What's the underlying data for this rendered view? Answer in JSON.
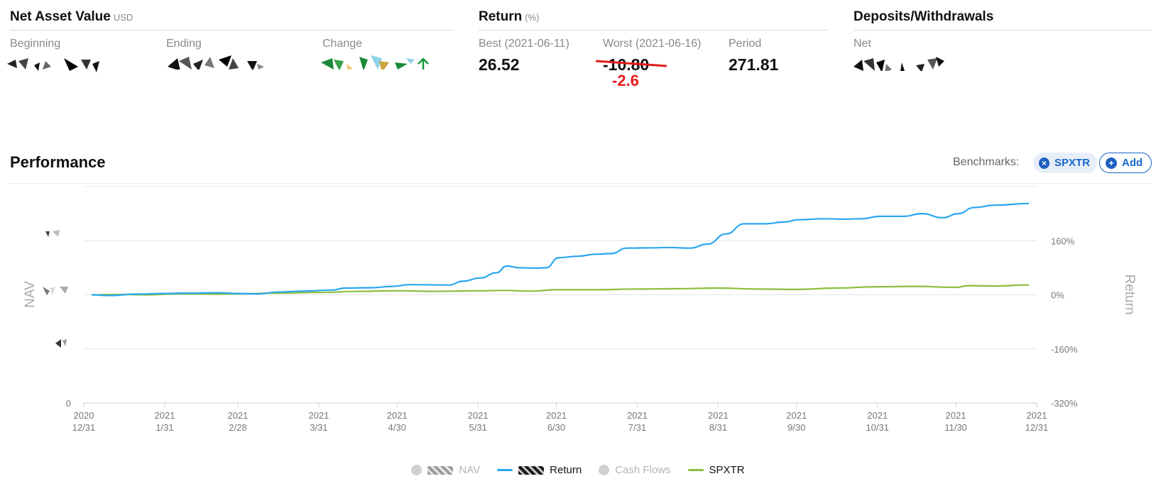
{
  "nav": {
    "title": "Net Asset Value",
    "unit": "USD",
    "beginning_label": "Beginning",
    "ending_label": "Ending",
    "change_label": "Change"
  },
  "return": {
    "title": "Return",
    "unit": "(%)",
    "best_label": "Best (2021-06-11)",
    "best_value": "26.52",
    "worst_label": "Worst (2021-06-16)",
    "worst_value": "-10.80",
    "worst_correction": "-2.6",
    "period_label": "Period",
    "period_value": "271.81"
  },
  "deposits": {
    "title": "Deposits/Withdrawals",
    "net_label": "Net"
  },
  "performance": {
    "title": "Performance",
    "benchmarks_label": "Benchmarks:",
    "benchmark_chip": "SPXTR",
    "add_label": "Add"
  },
  "icons": {
    "change_arrow": "arrow-up-icon",
    "chip_remove": "close-circle-icon",
    "chip_add": "plus-circle-icon"
  },
  "colors": {
    "return_line": "#2aa7f0",
    "spxtr_line": "#8abf3c",
    "accent": "#1667c7",
    "alert": "#e31b1b",
    "positive": "#169b3c"
  },
  "chart_data": {
    "type": "line",
    "title": "",
    "left_axis_title": "NAV",
    "right_axis_title": "Return",
    "left_ticks": [
      "0"
    ],
    "right_ticks": [
      "160%",
      "0%",
      "-160%",
      "-320%"
    ],
    "y_right_range": [
      -320,
      320
    ],
    "x_range": [
      "2020-12-31",
      "2021-12-31"
    ],
    "x_ticks": [
      {
        "top": "2020",
        "bottom": "12/31",
        "date": "2020-12-31"
      },
      {
        "top": "2021",
        "bottom": "1/31",
        "date": "2021-01-31"
      },
      {
        "top": "2021",
        "bottom": "2/28",
        "date": "2021-02-28"
      },
      {
        "top": "2021",
        "bottom": "3/31",
        "date": "2021-03-31"
      },
      {
        "top": "2021",
        "bottom": "4/30",
        "date": "2021-04-30"
      },
      {
        "top": "2021",
        "bottom": "5/31",
        "date": "2021-05-31"
      },
      {
        "top": "2021",
        "bottom": "6/30",
        "date": "2021-06-30"
      },
      {
        "top": "2021",
        "bottom": "7/31",
        "date": "2021-07-31"
      },
      {
        "top": "2021",
        "bottom": "8/31",
        "date": "2021-08-31"
      },
      {
        "top": "2021",
        "bottom": "9/30",
        "date": "2021-09-30"
      },
      {
        "top": "2021",
        "bottom": "10/31",
        "date": "2021-10-31"
      },
      {
        "top": "2021",
        "bottom": "11/30",
        "date": "2021-11-30"
      },
      {
        "top": "2021",
        "bottom": "12/31",
        "date": "2021-12-31"
      }
    ],
    "legend": [
      {
        "name": "NAV",
        "state": "inactive"
      },
      {
        "name": "Return",
        "state": "active"
      },
      {
        "name": "Cash Flows",
        "state": "inactive"
      },
      {
        "name": "SPXTR",
        "state": "active"
      }
    ],
    "series": [
      {
        "name": "Return",
        "color": "#2aa7f0",
        "points": [
          [
            "2021-01-03",
            0
          ],
          [
            "2021-01-10",
            -2
          ],
          [
            "2021-01-20",
            2
          ],
          [
            "2021-01-31",
            4
          ],
          [
            "2021-02-08",
            5
          ],
          [
            "2021-02-20",
            6
          ],
          [
            "2021-02-28",
            4
          ],
          [
            "2021-03-08",
            3
          ],
          [
            "2021-03-15",
            8
          ],
          [
            "2021-03-25",
            11
          ],
          [
            "2021-04-05",
            14
          ],
          [
            "2021-04-10",
            20
          ],
          [
            "2021-04-20",
            21
          ],
          [
            "2021-04-28",
            25
          ],
          [
            "2021-05-05",
            30
          ],
          [
            "2021-05-20",
            29
          ],
          [
            "2021-05-25",
            40
          ],
          [
            "2021-06-01",
            50
          ],
          [
            "2021-06-07",
            65
          ],
          [
            "2021-06-11",
            85
          ],
          [
            "2021-06-16",
            80
          ],
          [
            "2021-06-22",
            79
          ],
          [
            "2021-06-26",
            80
          ],
          [
            "2021-07-01",
            110
          ],
          [
            "2021-07-08",
            114
          ],
          [
            "2021-07-15",
            120
          ],
          [
            "2021-07-21",
            122
          ],
          [
            "2021-07-27",
            138
          ],
          [
            "2021-08-05",
            139
          ],
          [
            "2021-08-12",
            140
          ],
          [
            "2021-08-20",
            138
          ],
          [
            "2021-08-27",
            150
          ],
          [
            "2021-09-03",
            180
          ],
          [
            "2021-09-10",
            210
          ],
          [
            "2021-09-18",
            210
          ],
          [
            "2021-09-25",
            215
          ],
          [
            "2021-10-01",
            222
          ],
          [
            "2021-10-10",
            225
          ],
          [
            "2021-10-18",
            224
          ],
          [
            "2021-10-25",
            225
          ],
          [
            "2021-11-01",
            232
          ],
          [
            "2021-11-10",
            232
          ],
          [
            "2021-11-17",
            240
          ],
          [
            "2021-11-25",
            228
          ],
          [
            "2021-12-01",
            240
          ],
          [
            "2021-12-07",
            258
          ],
          [
            "2021-12-15",
            265
          ],
          [
            "2021-12-28",
            270
          ]
        ]
      },
      {
        "name": "SPXTR",
        "color": "#8abf3c",
        "points": [
          [
            "2021-01-03",
            0
          ],
          [
            "2021-01-15",
            1
          ],
          [
            "2021-01-25",
            0
          ],
          [
            "2021-02-05",
            3
          ],
          [
            "2021-02-20",
            2
          ],
          [
            "2021-03-01",
            3
          ],
          [
            "2021-03-15",
            5
          ],
          [
            "2021-03-31",
            7
          ],
          [
            "2021-04-15",
            10
          ],
          [
            "2021-04-30",
            12
          ],
          [
            "2021-05-15",
            10
          ],
          [
            "2021-05-31",
            12
          ],
          [
            "2021-06-10",
            13
          ],
          [
            "2021-06-20",
            11
          ],
          [
            "2021-06-30",
            15
          ],
          [
            "2021-07-15",
            15
          ],
          [
            "2021-07-31",
            17
          ],
          [
            "2021-08-15",
            18
          ],
          [
            "2021-08-31",
            20
          ],
          [
            "2021-09-15",
            17
          ],
          [
            "2021-09-30",
            16
          ],
          [
            "2021-10-15",
            20
          ],
          [
            "2021-10-31",
            24
          ],
          [
            "2021-11-15",
            25
          ],
          [
            "2021-11-30",
            22
          ],
          [
            "2021-12-05",
            27
          ],
          [
            "2021-12-15",
            26
          ],
          [
            "2021-12-28",
            29
          ]
        ]
      }
    ]
  }
}
